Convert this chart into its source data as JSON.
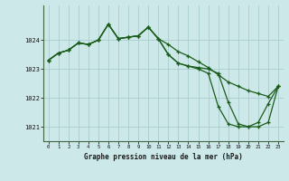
{
  "background_color": "#cce8e8",
  "grid_color": "#aacccc",
  "line_color": "#1a5c1a",
  "xlabel": "Graphe pression niveau de la mer (hPa)",
  "xlim": [
    -0.5,
    23.5
  ],
  "ylim": [
    1020.5,
    1025.2
  ],
  "yticks": [
    1021,
    1022,
    1023,
    1024
  ],
  "xticks": [
    0,
    1,
    2,
    3,
    4,
    5,
    6,
    7,
    8,
    9,
    10,
    11,
    12,
    13,
    14,
    15,
    16,
    17,
    18,
    19,
    20,
    21,
    22,
    23
  ],
  "series1": [
    1023.3,
    1023.55,
    1023.65,
    1023.9,
    1023.85,
    1024.0,
    1024.55,
    1024.05,
    1024.1,
    1024.15,
    1024.45,
    1024.05,
    1023.85,
    1023.6,
    1023.45,
    1023.25,
    1023.05,
    1022.8,
    1022.55,
    1022.4,
    1022.25,
    1022.15,
    1022.05,
    1022.4
  ],
  "series2": [
    1023.3,
    1023.55,
    1023.65,
    1023.9,
    1023.85,
    1024.0,
    1024.55,
    1024.05,
    1024.1,
    1024.15,
    1024.45,
    1024.05,
    1023.5,
    1023.2,
    1023.1,
    1023.05,
    1023.0,
    1022.85,
    1021.85,
    1021.1,
    1021.0,
    1021.0,
    1021.15,
    1022.4
  ],
  "series3": [
    1023.3,
    1023.55,
    1023.65,
    1023.9,
    1023.85,
    1024.0,
    1024.55,
    1024.05,
    1024.1,
    1024.15,
    1024.45,
    1024.05,
    1023.5,
    1023.2,
    1023.1,
    1023.0,
    1022.85,
    1021.7,
    1021.1,
    1021.0,
    1021.0,
    1021.15,
    1021.8,
    1022.4
  ]
}
